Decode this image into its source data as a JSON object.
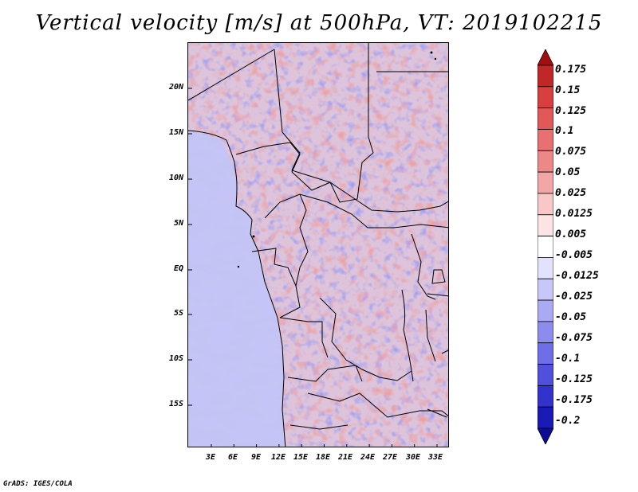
{
  "title": "Vertical velocity [m/s] at 500hPa, VT: 2019102215",
  "footer": "GrADS: IGES/COLA",
  "map": {
    "region": "Central Africa",
    "lon_range": [
      0,
      35
    ],
    "lat_range": [
      -20,
      25
    ],
    "lat_ticks": [
      "20N",
      "15N",
      "10N",
      "5N",
      "EQ",
      "5S",
      "10S",
      "15S"
    ],
    "lon_ticks": [
      "3E",
      "6E",
      "9E",
      "12E",
      "15E",
      "18E",
      "21E",
      "24E",
      "27E",
      "30E",
      "33E"
    ]
  },
  "colorbar": {
    "labels": [
      "0.175",
      "0.15",
      "0.125",
      "0.1",
      "0.075",
      "0.05",
      "0.025",
      "0.0125",
      "0.005",
      "-0.005",
      "-0.0125",
      "-0.025",
      "-0.05",
      "-0.075",
      "-0.1",
      "-0.125",
      "-0.175",
      "-0.2"
    ],
    "colors": [
      "#a01010",
      "#c02828",
      "#d84040",
      "#e05858",
      "#e87070",
      "#ec8888",
      "#f2a6a6",
      "#f8c8c8",
      "#fce4e4",
      "#ffffff",
      "#e2e2fc",
      "#c8c8f8",
      "#aaaaf4",
      "#8c8cee",
      "#6e6ee6",
      "#5050dc",
      "#3232cc",
      "#1a1ab4",
      "#0c0c96"
    ]
  }
}
